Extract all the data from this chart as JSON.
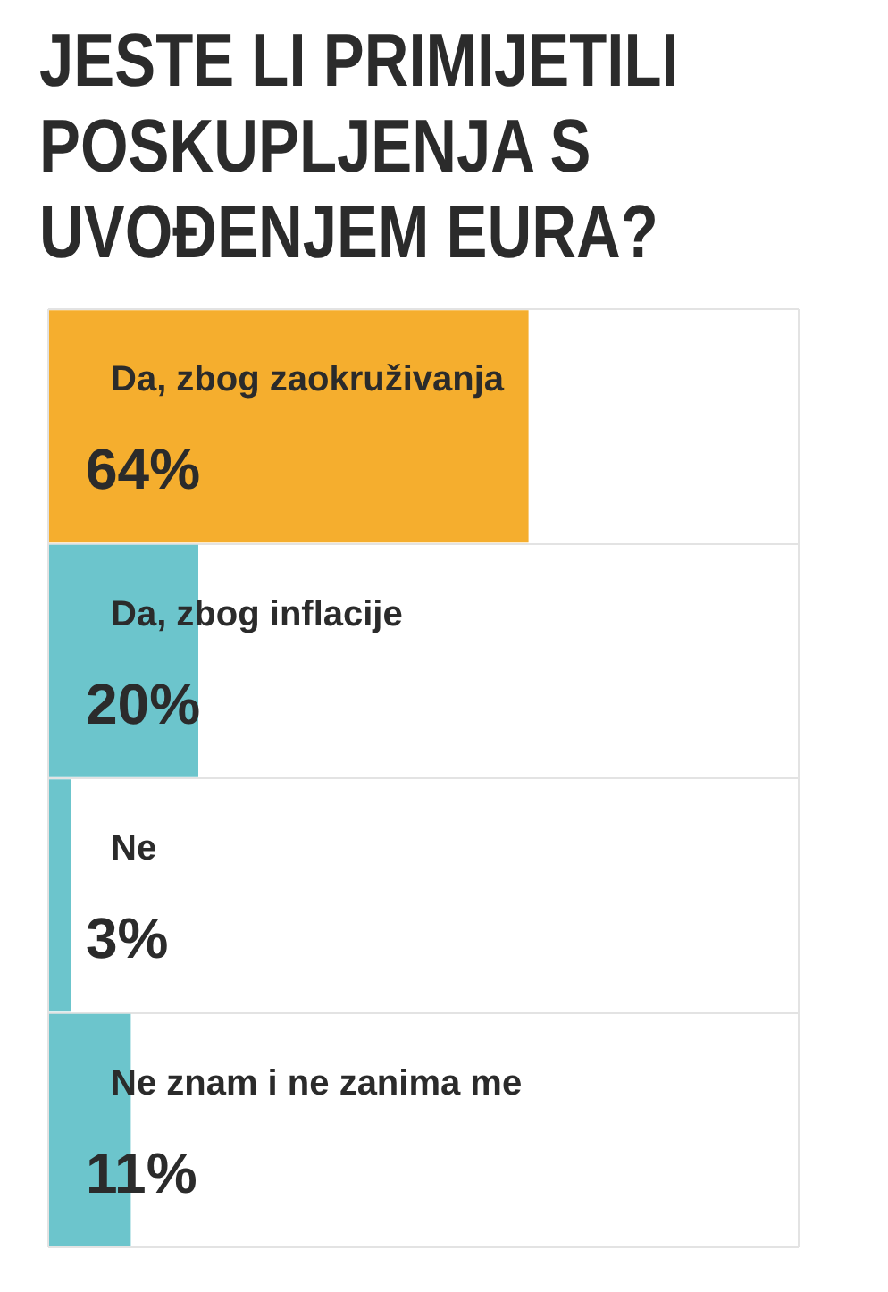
{
  "chart_data": {
    "type": "bar",
    "orientation": "horizontal",
    "title": "JESTE LI PRIMIJETILI POSKUPLJENJA S UVOĐENJEM EURA?",
    "categories": [
      "Da, zbog zaokruživanja",
      "Da, zbog inflacije",
      "Ne",
      "Ne znam i ne zanima me"
    ],
    "values": [
      64,
      20,
      3,
      11
    ],
    "colors": [
      "#f5ae2e",
      "#6cc5cc",
      "#6cc5cc",
      "#6cc5cc"
    ],
    "value_labels": [
      "64%",
      "20%",
      "3%",
      "11%"
    ],
    "xlim": [
      0,
      100
    ],
    "xticks": [
      0,
      100
    ],
    "tick_labels": false,
    "grid": true,
    "legend": false
  }
}
